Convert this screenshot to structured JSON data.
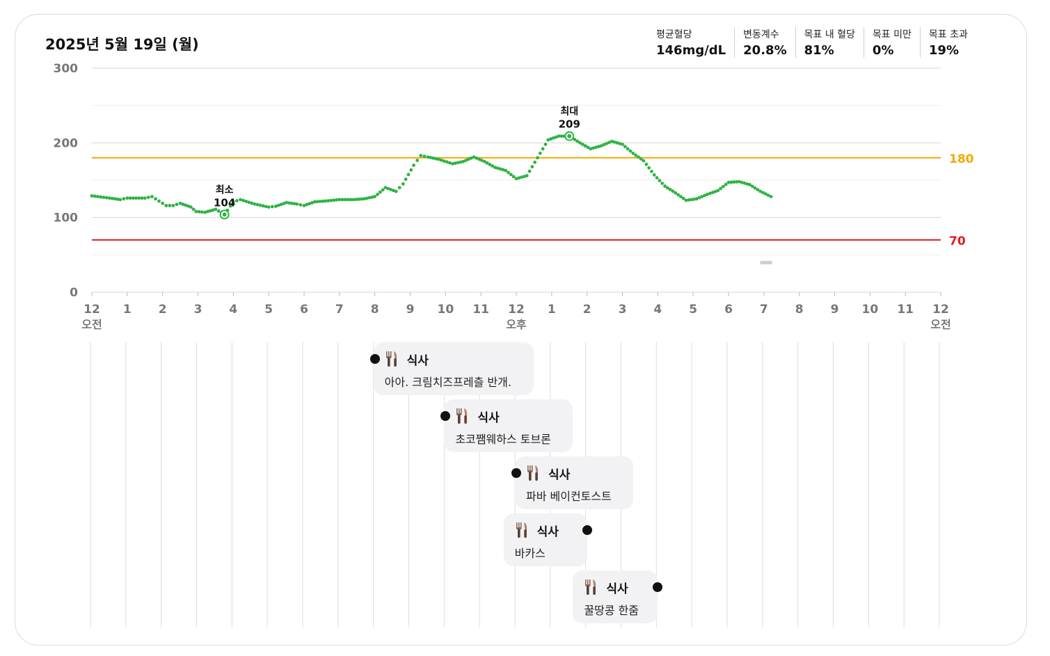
{
  "header": {
    "date": "2025년 5월 19일 (월)"
  },
  "stats": [
    {
      "label": "평균혈당",
      "value": "146mg/dL"
    },
    {
      "label": "변동계수",
      "value": "20.8%"
    },
    {
      "label": "목표 내 혈당",
      "value": "81%"
    },
    {
      "label": "목표 미만",
      "value": "0%"
    },
    {
      "label": "목표 초과",
      "value": "19%"
    }
  ],
  "chart_data": {
    "type": "scatter",
    "y_ticks": [
      "0",
      "100",
      "200",
      "300"
    ],
    "ylim": [
      0,
      300
    ],
    "xlim": [
      0,
      24
    ],
    "x_ticks": [
      "12",
      "1",
      "2",
      "3",
      "4",
      "5",
      "6",
      "7",
      "8",
      "9",
      "10",
      "11",
      "12",
      "1",
      "2",
      "3",
      "4",
      "5",
      "6",
      "7",
      "8",
      "9",
      "10",
      "11",
      "12"
    ],
    "x_sublabels": [
      {
        "hour": 0,
        "text": "오전"
      },
      {
        "hour": 12,
        "text": "오후"
      },
      {
        "hour": 24,
        "text": "오전"
      }
    ],
    "grid": true,
    "thresholds": [
      {
        "value": 180,
        "label": "180",
        "color": "#f5a800"
      },
      {
        "value": 70,
        "label": "70",
        "color": "#e51c1c"
      }
    ],
    "series_color": "#2fb344",
    "annotations": [
      {
        "label": "최소",
        "value_text": "104",
        "hour": 3.75,
        "value": 104
      },
      {
        "label": "최대",
        "value_text": "209",
        "hour": 13.5,
        "value": 209
      }
    ],
    "points": [
      [
        0.0,
        129
      ],
      [
        0.5,
        126
      ],
      [
        0.8,
        124
      ],
      [
        1.0,
        126
      ],
      [
        1.5,
        126
      ],
      [
        1.7,
        128
      ],
      [
        1.9,
        122
      ],
      [
        2.1,
        116
      ],
      [
        2.3,
        116
      ],
      [
        2.5,
        119
      ],
      [
        2.8,
        114
      ],
      [
        2.95,
        108
      ],
      [
        3.2,
        107
      ],
      [
        3.5,
        111
      ],
      [
        3.75,
        104
      ],
      [
        4.0,
        121
      ],
      [
        4.2,
        124
      ],
      [
        4.6,
        118
      ],
      [
        5.0,
        114
      ],
      [
        5.2,
        115
      ],
      [
        5.5,
        120
      ],
      [
        5.8,
        118
      ],
      [
        6.0,
        116
      ],
      [
        6.3,
        121
      ],
      [
        6.6,
        122
      ],
      [
        7.0,
        124
      ],
      [
        7.4,
        124
      ],
      [
        7.7,
        125
      ],
      [
        8.0,
        128
      ],
      [
        8.3,
        140
      ],
      [
        8.6,
        135
      ],
      [
        8.8,
        145
      ],
      [
        9.1,
        170
      ],
      [
        9.3,
        183
      ],
      [
        9.5,
        181
      ],
      [
        9.8,
        178
      ],
      [
        10.2,
        172
      ],
      [
        10.5,
        175
      ],
      [
        10.8,
        181
      ],
      [
        11.1,
        175
      ],
      [
        11.4,
        167
      ],
      [
        11.7,
        163
      ],
      [
        12.0,
        152
      ],
      [
        12.3,
        156
      ],
      [
        12.6,
        180
      ],
      [
        12.9,
        204
      ],
      [
        13.2,
        209
      ],
      [
        13.5,
        209
      ],
      [
        13.8,
        200
      ],
      [
        14.1,
        192
      ],
      [
        14.4,
        196
      ],
      [
        14.7,
        202
      ],
      [
        15.0,
        198
      ],
      [
        15.3,
        186
      ],
      [
        15.6,
        176
      ],
      [
        15.9,
        157
      ],
      [
        16.2,
        142
      ],
      [
        16.5,
        133
      ],
      [
        16.8,
        123
      ],
      [
        17.1,
        125
      ],
      [
        17.4,
        131
      ],
      [
        17.7,
        136
      ],
      [
        18.0,
        147
      ],
      [
        18.3,
        148
      ],
      [
        18.6,
        144
      ],
      [
        18.9,
        135
      ],
      [
        19.2,
        128
      ]
    ]
  },
  "meals": [
    {
      "title": "식사",
      "note": "아아. 크림치즈프레츨 반개.",
      "hour": 8.0,
      "dot_side": "left",
      "icon": "fork-knife-icon"
    },
    {
      "title": "식사",
      "note": "초코쨈웨하스 토브론",
      "hour": 10.0,
      "dot_side": "left",
      "icon": "fork-knife-icon"
    },
    {
      "title": "식사",
      "note": "파바 베이컨토스트",
      "hour": 12.0,
      "dot_side": "left",
      "icon": "fork-knife-icon"
    },
    {
      "title": "식사",
      "note": "바카스",
      "hour": 14.0,
      "dot_side": "right",
      "icon": "fork-knife-icon"
    },
    {
      "title": "식사",
      "note": "꿀땅콩 한줌",
      "hour": 16.0,
      "dot_side": "right",
      "icon": "fork-knife-icon"
    }
  ]
}
